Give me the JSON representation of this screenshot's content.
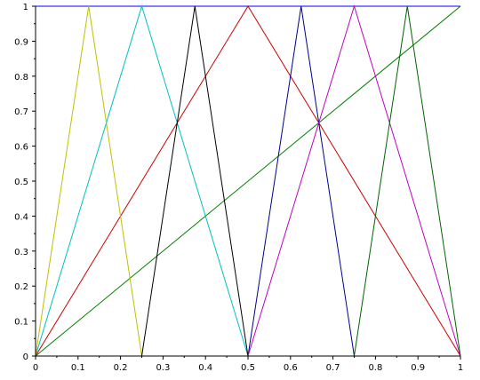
{
  "chart_data": {
    "type": "line",
    "title": "",
    "xlabel": "",
    "ylabel": "",
    "xlim": [
      0,
      1
    ],
    "ylim": [
      0,
      1
    ],
    "grid": false,
    "legend": "none",
    "x_ticks": [
      "0",
      "0.1",
      "0.2",
      "0.3",
      "0.4",
      "0.5",
      "0.6",
      "0.7",
      "0.8",
      "0.9",
      "1"
    ],
    "y_ticks": [
      "0",
      "0.1",
      "0.2",
      "0.3",
      "0.4",
      "0.5",
      "0.6",
      "0.7",
      "0.8",
      "0.9",
      "1"
    ],
    "series": [
      {
        "color": "#0000ff",
        "x": [
          0,
          1
        ],
        "y": [
          1,
          1
        ]
      },
      {
        "color": "#008000",
        "x": [
          0,
          1
        ],
        "y": [
          0,
          1
        ]
      },
      {
        "color": "#cc0000",
        "x": [
          0,
          0.5,
          1
        ],
        "y": [
          0,
          1,
          0
        ]
      },
      {
        "color": "#00c0c0",
        "x": [
          0,
          0.25,
          0.5
        ],
        "y": [
          0,
          1,
          0
        ]
      },
      {
        "color": "#c0c000",
        "x": [
          0,
          0.125,
          0.25
        ],
        "y": [
          0,
          1,
          0
        ]
      },
      {
        "color": "#000000",
        "x": [
          0.25,
          0.375,
          0.5
        ],
        "y": [
          0,
          1,
          0
        ]
      },
      {
        "color": "#00008b",
        "x": [
          0.5,
          0.625,
          0.75
        ],
        "y": [
          0,
          1,
          0
        ]
      },
      {
        "color": "#c000c0",
        "x": [
          0.5,
          0.75,
          1
        ],
        "y": [
          0,
          1,
          0
        ]
      },
      {
        "color": "#006400",
        "x": [
          0.75,
          0.875,
          1
        ],
        "y": [
          0,
          1,
          0
        ]
      }
    ]
  }
}
